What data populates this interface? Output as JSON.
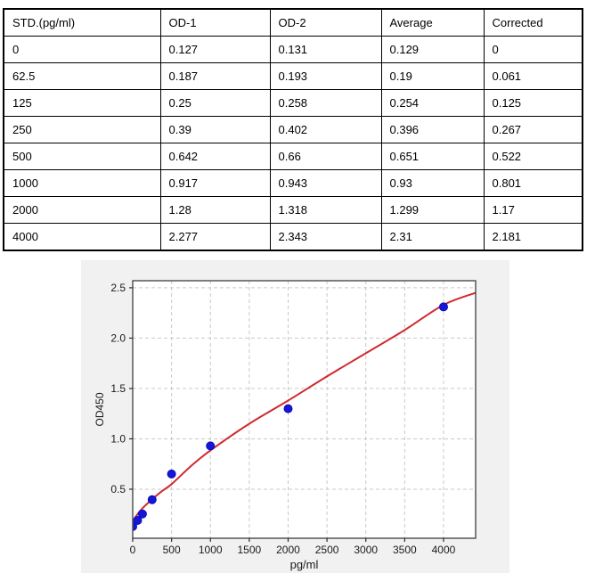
{
  "table": {
    "headers": [
      "STD.(pg/ml)",
      "OD-1",
      "OD-2",
      "Average",
      "Corrected"
    ],
    "rows": [
      [
        "0",
        "0.127",
        "0.131",
        "0.129",
        "0"
      ],
      [
        "62.5",
        "0.187",
        "0.193",
        "0.19",
        "0.061"
      ],
      [
        "125",
        "0.25",
        "0.258",
        "0.254",
        "0.125"
      ],
      [
        "250",
        "0.39",
        "0.402",
        "0.396",
        "0.267"
      ],
      [
        "500",
        "0.642",
        "0.66",
        "0.651",
        "0.522"
      ],
      [
        "1000",
        "0.917",
        "0.943",
        "0.93",
        "0.801"
      ],
      [
        "2000",
        "1.28",
        "1.318",
        "1.299",
        "1.17"
      ],
      [
        "4000",
        "2.277",
        "2.343",
        "2.31",
        "2.181"
      ]
    ]
  },
  "chart_data": {
    "type": "scatter",
    "title": "",
    "xlabel": "pg/ml",
    "ylabel": "OD450",
    "xlim": [
      0,
      4413
    ],
    "ylim": [
      0.013,
      2.57
    ],
    "x_ticks": [
      0,
      500,
      1000,
      1500,
      2000,
      2500,
      3000,
      3500,
      4000
    ],
    "y_ticks": [
      0.5,
      1.0,
      1.5,
      2.0,
      2.5
    ],
    "grid": true,
    "grid_style": "dashed",
    "legend": "none",
    "series": [
      {
        "name": "standard-points",
        "type": "scatter",
        "color": "#1616d6",
        "edge_color": "#0a0abf",
        "x": [
          0,
          62.5,
          125,
          250,
          500,
          1000,
          2000,
          4000
        ],
        "y": [
          0.129,
          0.19,
          0.254,
          0.396,
          0.651,
          0.93,
          1.299,
          2.31
        ]
      },
      {
        "name": "fitted-curve",
        "type": "line",
        "color": "#d02a2e",
        "x": [
          0,
          60,
          125,
          250,
          375,
          500,
          750,
          1000,
          1500,
          2000,
          2500,
          3000,
          3500,
          4000,
          4413
        ],
        "y": [
          0.185,
          0.25,
          0.31,
          0.4,
          0.48,
          0.55,
          0.73,
          0.885,
          1.15,
          1.38,
          1.62,
          1.85,
          2.08,
          2.33,
          2.45
        ]
      }
    ],
    "colors": {
      "figure_bg": "#f1f1f1",
      "plot_bg": "#ffffff",
      "grid": "#c9c9c9",
      "spine": "#4a4a4a",
      "tick": "#2a2a2a",
      "text": "#1a1a1a"
    }
  }
}
